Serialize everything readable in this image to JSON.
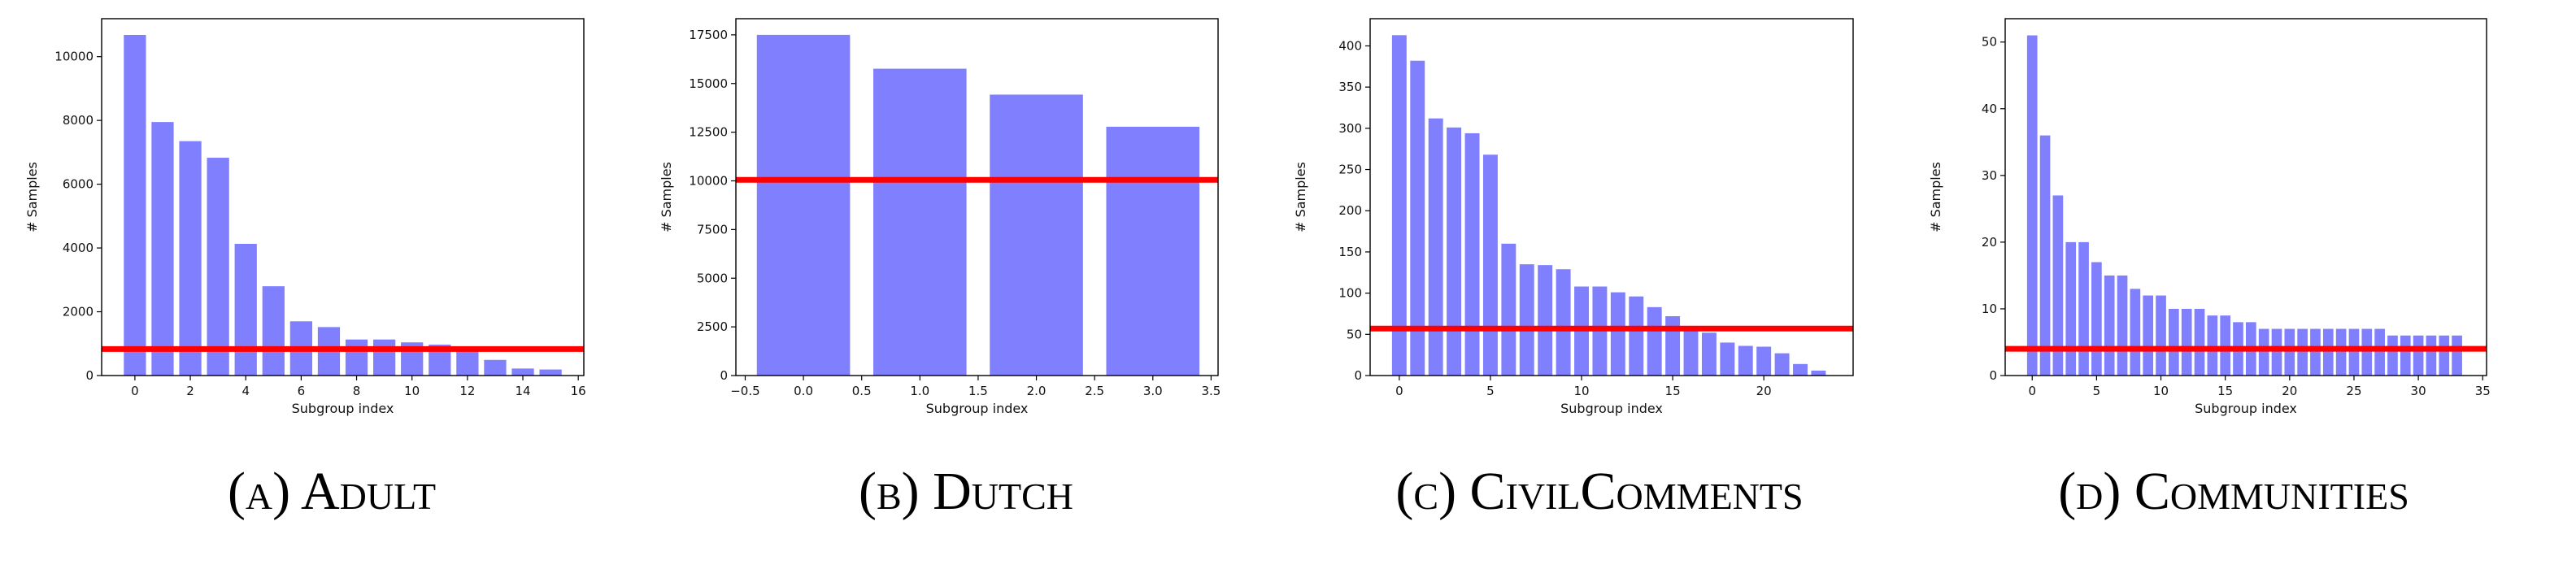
{
  "colors": {
    "bar": "#8080ff",
    "threshold": "#ff0000",
    "axis": "#000000"
  },
  "chart_data": [
    {
      "type": "bar",
      "caption": "(a) Adult",
      "xlabel": "Subgroup index",
      "ylabel": "# Samples",
      "x": [
        0,
        1,
        2,
        3,
        4,
        5,
        6,
        7,
        8,
        9,
        10,
        11,
        12,
        13,
        14,
        15
      ],
      "values": [
        10680,
        7950,
        7350,
        6830,
        4130,
        2800,
        1700,
        1520,
        1130,
        1130,
        1040,
        970,
        800,
        490,
        220,
        190
      ],
      "threshold": 832,
      "xlim": [
        -1.2,
        16.2
      ],
      "ylim": [
        0,
        11190
      ],
      "xticks": [
        0,
        2,
        4,
        6,
        8,
        10,
        12,
        14,
        16
      ],
      "xtick_labels": [
        "0",
        "2",
        "4",
        "6",
        "8",
        "10",
        "12",
        "14",
        "16"
      ],
      "yticks": [
        0,
        2000,
        4000,
        6000,
        8000,
        10000
      ],
      "ytick_labels": [
        "0",
        "2000",
        "4000",
        "6000",
        "8000",
        "10000"
      ],
      "grid": false
    },
    {
      "type": "bar",
      "caption": "(b) Dutch",
      "xlabel": "Subgroup index",
      "ylabel": "# Samples",
      "x": [
        0,
        1,
        2,
        3
      ],
      "values": [
        17500,
        15760,
        14430,
        12780
      ],
      "threshold": 10050,
      "xlim": [
        -0.58,
        3.56
      ],
      "ylim": [
        0,
        18330
      ],
      "xticks": [
        -0.5,
        0,
        0.5,
        1,
        1.5,
        2,
        2.5,
        3,
        3.5
      ],
      "xtick_labels": [
        "−0.5",
        "0.0",
        "0.5",
        "1.0",
        "1.5",
        "2.0",
        "2.5",
        "3.0",
        "3.5"
      ],
      "yticks": [
        0,
        2500,
        5000,
        7500,
        10000,
        12500,
        15000,
        17500
      ],
      "ytick_labels": [
        "0",
        "2500",
        "5000",
        "7500",
        "10000",
        "12500",
        "15000",
        "17500"
      ],
      "grid": false
    },
    {
      "type": "bar",
      "caption": "(c) CivilComments",
      "xlabel": "Subgroup index",
      "ylabel": "# Samples",
      "x": [
        0,
        1,
        2,
        3,
        4,
        5,
        6,
        7,
        8,
        9,
        10,
        11,
        12,
        13,
        14,
        15,
        16,
        17,
        18,
        19,
        20,
        21,
        22,
        23
      ],
      "values": [
        413,
        382,
        312,
        301,
        294,
        268,
        160,
        135,
        134,
        129,
        108,
        108,
        101,
        96,
        83,
        72,
        56,
        52,
        40,
        36,
        35,
        27,
        14,
        6
      ],
      "threshold": 57,
      "xlim": [
        -1.6,
        24.9
      ],
      "ylim": [
        0,
        433
      ],
      "xticks": [
        0,
        5,
        10,
        15,
        20
      ],
      "xtick_labels": [
        "0",
        "5",
        "10",
        "15",
        "20"
      ],
      "yticks": [
        0,
        50,
        100,
        150,
        200,
        250,
        300,
        350,
        400
      ],
      "ytick_labels": [
        "0",
        "50",
        "100",
        "150",
        "200",
        "250",
        "300",
        "350",
        "400"
      ],
      "grid": false
    },
    {
      "type": "bar",
      "caption": "(d) Communities",
      "xlabel": "Subgroup index",
      "ylabel": "# Samples",
      "x": [
        0,
        1,
        2,
        3,
        4,
        5,
        6,
        7,
        8,
        9,
        10,
        11,
        12,
        13,
        14,
        15,
        16,
        17,
        18,
        19,
        20,
        21,
        22,
        23,
        24,
        25,
        26,
        27,
        28,
        29,
        30,
        31,
        32,
        33
      ],
      "values": [
        51,
        36,
        27,
        20,
        20,
        17,
        15,
        15,
        13,
        12,
        12,
        10,
        10,
        10,
        9,
        9,
        8,
        8,
        7,
        7,
        7,
        7,
        7,
        7,
        7,
        7,
        7,
        7,
        6,
        6,
        6,
        6,
        6,
        6
      ],
      "threshold": 4,
      "xlim": [
        -2.1,
        35.3
      ],
      "ylim": [
        0,
        53.5
      ],
      "xticks": [
        0,
        5,
        10,
        15,
        20,
        25,
        30,
        35
      ],
      "xtick_labels": [
        "0",
        "5",
        "10",
        "15",
        "20",
        "25",
        "30",
        "35"
      ],
      "yticks": [
        0,
        10,
        20,
        30,
        40,
        50
      ],
      "ytick_labels": [
        "0",
        "10",
        "20",
        "30",
        "40",
        "50"
      ],
      "grid": false
    }
  ]
}
